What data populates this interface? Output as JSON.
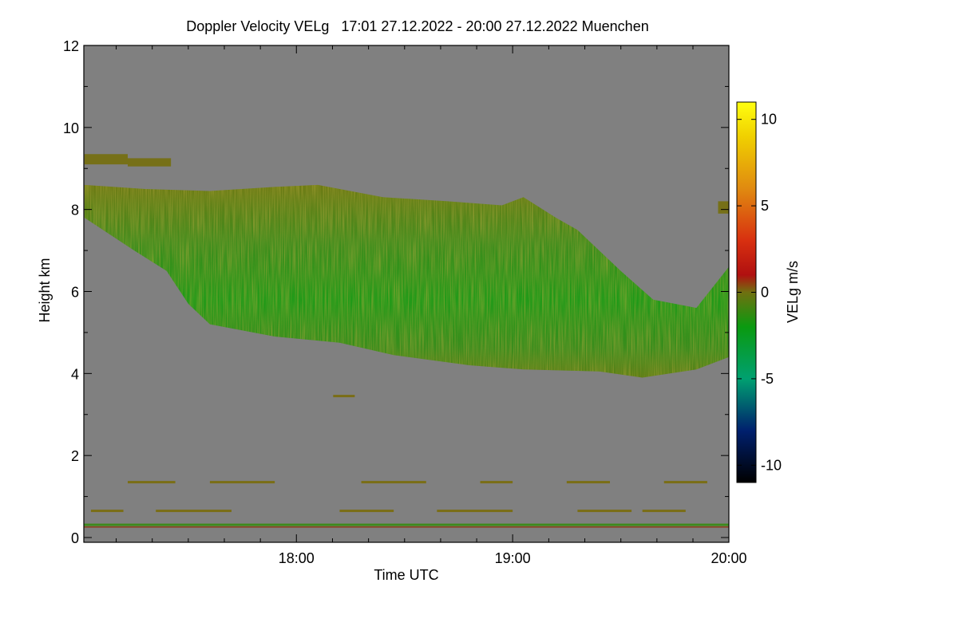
{
  "chart_data": {
    "type": "heatmap",
    "title": "Doppler Velocity VELg   17:01 27.12.2022 - 20:00 27.12.2022 Muenchen",
    "xlabel": "Time UTC",
    "ylabel": "Height km",
    "x_range_hours": [
      17.017,
      20.0
    ],
    "x_ticks": [
      {
        "value": 18.0,
        "label": "18:00"
      },
      {
        "value": 19.0,
        "label": "19:00"
      },
      {
        "value": 20.0,
        "label": "20:00"
      }
    ],
    "x_minor_step_hours": 0.1667,
    "ylim": [
      0,
      12
    ],
    "y_ticks": [
      {
        "value": 0,
        "label": "0"
      },
      {
        "value": 2,
        "label": "2"
      },
      {
        "value": 4,
        "label": "4"
      },
      {
        "value": 6,
        "label": "6"
      },
      {
        "value": 8,
        "label": "8"
      },
      {
        "value": 10,
        "label": "10"
      },
      {
        "value": 12,
        "label": "12"
      }
    ],
    "background_color": "#808080",
    "colorbar": {
      "label": "VELg m/s",
      "range": [
        -11,
        11
      ],
      "ticks": [
        {
          "value": 10,
          "label": "10"
        },
        {
          "value": 5,
          "label": "5"
        },
        {
          "value": 0,
          "label": "0"
        },
        {
          "value": -5,
          "label": "-5"
        },
        {
          "value": -10,
          "label": "-10"
        }
      ],
      "stops": [
        {
          "value": -11,
          "color": "#000000"
        },
        {
          "value": -8,
          "color": "#00206e"
        },
        {
          "value": -5,
          "color": "#00a070"
        },
        {
          "value": -2,
          "color": "#0a9a10"
        },
        {
          "value": 0,
          "color": "#707010"
        },
        {
          "value": 1,
          "color": "#b01010"
        },
        {
          "value": 3,
          "color": "#d83010"
        },
        {
          "value": 6,
          "color": "#e08a10"
        },
        {
          "value": 9,
          "color": "#f0d000"
        },
        {
          "value": 11,
          "color": "#ffff10"
        }
      ]
    },
    "cloud_top_km": [
      {
        "t": 17.02,
        "h": 8.6
      },
      {
        "t": 17.3,
        "h": 8.5
      },
      {
        "t": 17.6,
        "h": 8.45
      },
      {
        "t": 17.9,
        "h": 8.55
      },
      {
        "t": 18.1,
        "h": 8.6
      },
      {
        "t": 18.4,
        "h": 8.3
      },
      {
        "t": 18.7,
        "h": 8.2
      },
      {
        "t": 18.95,
        "h": 8.1
      },
      {
        "t": 19.05,
        "h": 8.3
      },
      {
        "t": 19.2,
        "h": 7.8
      },
      {
        "t": 19.3,
        "h": 7.5
      },
      {
        "t": 19.5,
        "h": 6.5
      },
      {
        "t": 19.65,
        "h": 5.8
      },
      {
        "t": 19.85,
        "h": 5.6
      },
      {
        "t": 20.0,
        "h": 6.6
      }
    ],
    "cloud_base_km": [
      {
        "t": 17.02,
        "h": 7.8
      },
      {
        "t": 17.25,
        "h": 7.0
      },
      {
        "t": 17.4,
        "h": 6.5
      },
      {
        "t": 17.5,
        "h": 5.7
      },
      {
        "t": 17.6,
        "h": 5.2
      },
      {
        "t": 17.9,
        "h": 4.9
      },
      {
        "t": 18.2,
        "h": 4.75
      },
      {
        "t": 18.45,
        "h": 4.45
      },
      {
        "t": 18.8,
        "h": 4.2
      },
      {
        "t": 19.05,
        "h": 4.1
      },
      {
        "t": 19.4,
        "h": 4.05
      },
      {
        "t": 19.6,
        "h": 3.9
      },
      {
        "t": 19.85,
        "h": 4.1
      },
      {
        "t": 20.0,
        "h": 4.4
      }
    ],
    "cirrus_fragments": [
      {
        "t0": 17.02,
        "t1": 17.22,
        "h0": 9.1,
        "h1": 9.35
      },
      {
        "t0": 17.22,
        "t1": 17.42,
        "h0": 9.05,
        "h1": 9.25
      },
      {
        "t0": 19.95,
        "t1": 20.0,
        "h0": 7.9,
        "h1": 8.2
      }
    ],
    "low_level_layers_km": [
      {
        "t0": 17.22,
        "t1": 17.44,
        "h": 1.35
      },
      {
        "t0": 17.6,
        "t1": 17.9,
        "h": 1.35
      },
      {
        "t0": 18.3,
        "t1": 18.6,
        "h": 1.35
      },
      {
        "t0": 18.85,
        "t1": 19.0,
        "h": 1.35
      },
      {
        "t0": 19.25,
        "t1": 19.45,
        "h": 1.35
      },
      {
        "t0": 19.7,
        "t1": 19.9,
        "h": 1.35
      },
      {
        "t0": 17.05,
        "t1": 17.2,
        "h": 0.65
      },
      {
        "t0": 17.35,
        "t1": 17.7,
        "h": 0.65
      },
      {
        "t0": 18.2,
        "t1": 18.45,
        "h": 0.65
      },
      {
        "t0": 18.65,
        "t1": 19.0,
        "h": 0.65
      },
      {
        "t0": 19.3,
        "t1": 19.55,
        "h": 0.65
      },
      {
        "t0": 19.6,
        "t1": 19.8,
        "h": 0.65
      },
      {
        "t0": 18.17,
        "t1": 18.27,
        "h": 3.45
      }
    ],
    "surface_layer_km": 0.3
  }
}
